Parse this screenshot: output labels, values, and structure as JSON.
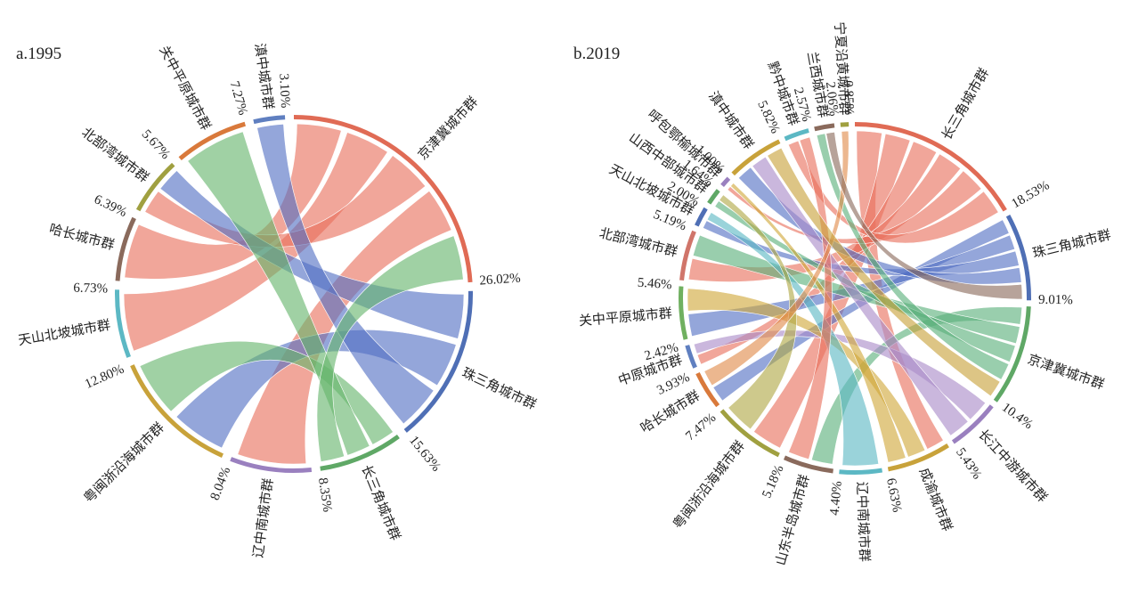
{
  "chart_data": [
    {
      "type": "chord",
      "title": "a.1995",
      "segments": [
        {
          "name": "京津冀城市群",
          "share": 26.02,
          "color": "#e06b55"
        },
        {
          "name": "珠三角城市群",
          "share": 15.63,
          "color": "#4f6fb5"
        },
        {
          "name": "长三角城市群",
          "share": 8.35,
          "color": "#5fa866"
        },
        {
          "name": "辽中南城市群",
          "share": 8.04,
          "color": "#9a80bf"
        },
        {
          "name": "粤闽浙沿海城市群",
          "share": 12.8,
          "color": "#c8a23a"
        },
        {
          "name": "天山北坡城市群",
          "share": 6.73,
          "color": "#5cb8c4"
        },
        {
          "name": "哈长城市群",
          "share": 6.39,
          "color": "#8a6a5c"
        },
        {
          "name": "北部湾城市群",
          "share": 5.67,
          "color": "#a0a040"
        },
        {
          "name": "关中平原城市群",
          "share": 7.27,
          "color": "#d9793b"
        },
        {
          "name": "滇中城市群",
          "share": 3.1,
          "color": "#5f7fc0"
        }
      ],
      "pct_labels": [
        "26.02%",
        "15.63%",
        "8.35%",
        "8.04%",
        "12.80%",
        "6.73%",
        "6.39%",
        "5.67%",
        "7.27%",
        "3.10%"
      ],
      "flows": [
        {
          "from": 0,
          "to": 6,
          "color": "#e8705c"
        },
        {
          "from": 0,
          "to": 5,
          "color": "#e8705c"
        },
        {
          "from": 0,
          "to": 7,
          "color": "#e8705c"
        },
        {
          "from": 0,
          "to": 3,
          "color": "#e8705c"
        },
        {
          "from": 1,
          "to": 7,
          "color": "#5370c4"
        },
        {
          "from": 1,
          "to": 4,
          "color": "#5370c4"
        },
        {
          "from": 9,
          "to": 1,
          "color": "#5370c4"
        },
        {
          "from": 2,
          "to": 4,
          "color": "#66b56c"
        },
        {
          "from": 2,
          "to": 8,
          "color": "#66b56c"
        },
        {
          "from": 2,
          "to": 0,
          "color": "#66b56c"
        }
      ]
    },
    {
      "type": "chord",
      "title": "b.2019",
      "segments": [
        {
          "name": "长三角城市群",
          "share": 18.53,
          "color": "#e06b55"
        },
        {
          "name": "珠三角城市群",
          "share": 9.01,
          "color": "#4f6fb5"
        },
        {
          "name": "京津冀城市群",
          "share": 10.4,
          "color": "#5fa866"
        },
        {
          "name": "长江中游城市群",
          "share": 5.43,
          "color": "#9a80bf"
        },
        {
          "name": "成渝城市群",
          "share": 6.63,
          "color": "#c8a23a"
        },
        {
          "name": "辽中南城市群",
          "share": 4.4,
          "color": "#5cb8c4"
        },
        {
          "name": "山东半岛城市群",
          "share": 5.18,
          "color": "#8a6a5c"
        },
        {
          "name": "粤闽浙沿海城市群",
          "share": 7.47,
          "color": "#a0a040"
        },
        {
          "name": "哈长城市群",
          "share": 3.93,
          "color": "#d9793b"
        },
        {
          "name": "中原城市群",
          "share": 2.42,
          "color": "#5f7fc0"
        },
        {
          "name": "关中平原城市群",
          "share": 5.46,
          "color": "#70b060"
        },
        {
          "name": "北部湾城市群",
          "share": 5.19,
          "color": "#d0756a"
        },
        {
          "name": "天山北坡城市群",
          "share": 2.0,
          "color": "#4f6fb5"
        },
        {
          "name": "山西中部城市群",
          "share": 1.64,
          "color": "#5fa866"
        },
        {
          "name": "呼包鄂榆城市群",
          "share": 1.0,
          "color": "#9a80bf"
        },
        {
          "name": "滇中城市群",
          "share": 5.82,
          "color": "#c8a23a"
        },
        {
          "name": "黔中城市群",
          "share": 2.57,
          "color": "#5cb8c4"
        },
        {
          "name": "兰西城市群",
          "share": 2.06,
          "color": "#8a6a5c"
        },
        {
          "name": "宁夏沿黄城市群",
          "share": 0.85,
          "color": "#a0a040"
        }
      ],
      "pct_labels": [
        "18.53%",
        "9.01%",
        "10.4%",
        "5.43%",
        "6.63%",
        "4.40%",
        "5.18%",
        "7.47%",
        "3.93%",
        "2.42%",
        "5.46%",
        "5.19%",
        "2.00%",
        "1.64%",
        "1.00%",
        "5.82%",
        "2.57%",
        "2.06%",
        "0.85%"
      ],
      "flows": [
        {
          "from": 0,
          "to": 4,
          "color": "#e8705c"
        },
        {
          "from": 0,
          "to": 7,
          "color": "#e8705c"
        },
        {
          "from": 0,
          "to": 9,
          "color": "#e8705c"
        },
        {
          "from": 0,
          "to": 11,
          "color": "#e8705c"
        },
        {
          "from": 0,
          "to": 14,
          "color": "#e8705c"
        },
        {
          "from": 0,
          "to": 16,
          "color": "#e8705c"
        },
        {
          "from": 1,
          "to": 8,
          "color": "#5370c4"
        },
        {
          "from": 1,
          "to": 10,
          "color": "#5370c4"
        },
        {
          "from": 1,
          "to": 12,
          "color": "#5370c4"
        },
        {
          "from": 1,
          "to": 15,
          "color": "#5370c4"
        },
        {
          "from": 2,
          "to": 6,
          "color": "#5bb07a"
        },
        {
          "from": 2,
          "to": 11,
          "color": "#5bb07a"
        },
        {
          "from": 2,
          "to": 13,
          "color": "#5bb07a"
        },
        {
          "from": 2,
          "to": 17,
          "color": "#5bb07a"
        },
        {
          "from": 3,
          "to": 9,
          "color": "#a98ac8"
        },
        {
          "from": 3,
          "to": 15,
          "color": "#a98ac8"
        },
        {
          "from": 4,
          "to": 10,
          "color": "#d0a83a"
        },
        {
          "from": 4,
          "to": 14,
          "color": "#d0a83a"
        },
        {
          "from": 5,
          "to": 12,
          "color": "#5cb8c4"
        },
        {
          "from": 6,
          "to": 16,
          "color": "#e8705c"
        },
        {
          "from": 7,
          "to": 13,
          "color": "#b0a845"
        },
        {
          "from": 8,
          "to": 18,
          "color": "#e08a4a"
        },
        {
          "from": 15,
          "to": 2,
          "color": "#c8a23a"
        },
        {
          "from": 17,
          "to": 1,
          "color": "#8a6a5c"
        }
      ]
    }
  ]
}
